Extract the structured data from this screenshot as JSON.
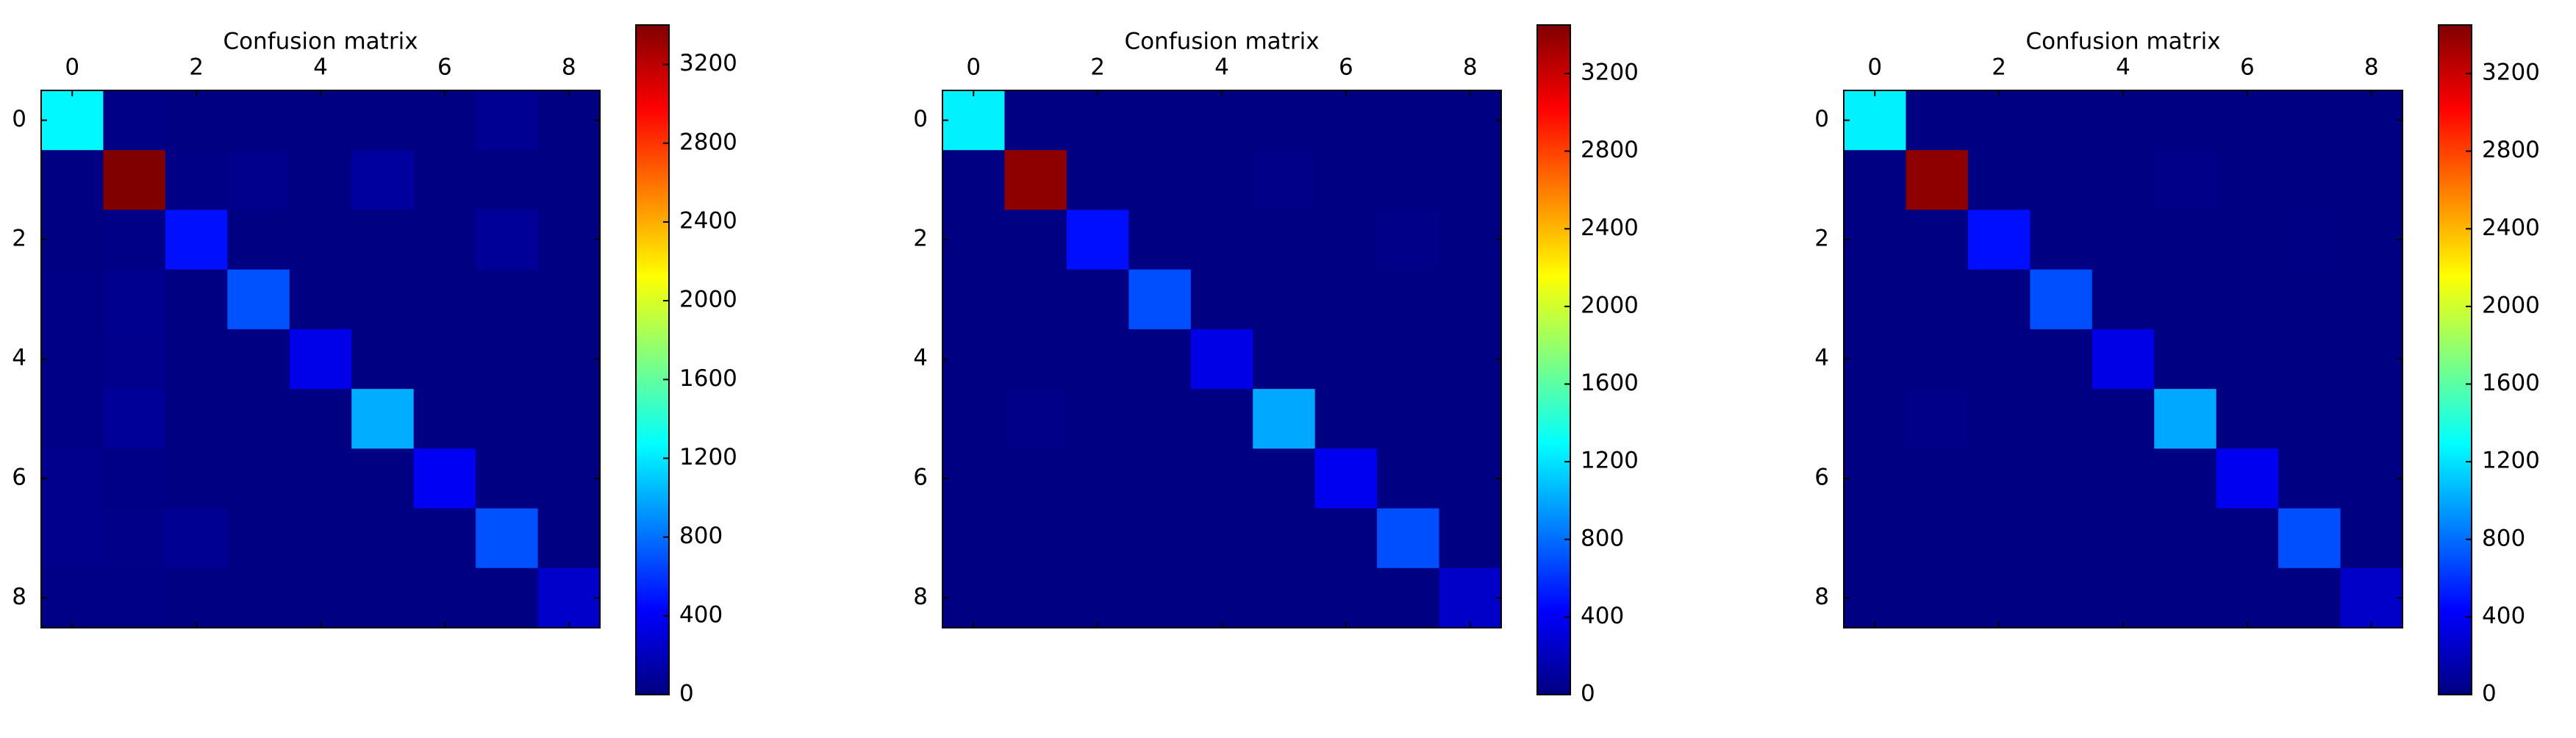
{
  "chart_data": [
    {
      "type": "heatmap",
      "title": "Confusion matrix",
      "colormap": "jet",
      "xlim": [
        -0.5,
        8.5
      ],
      "ylim": [
        -0.5,
        8.5
      ],
      "y_inverted": true,
      "xticks": [
        0,
        2,
        4,
        6,
        8
      ],
      "yticks": [
        0,
        2,
        4,
        6,
        8
      ],
      "clim": [
        0,
        3400
      ],
      "cticks": [
        0,
        400,
        800,
        1200,
        1600,
        2000,
        2400,
        2800,
        3200
      ],
      "values": [
        [
          1250,
          20,
          10,
          10,
          10,
          10,
          10,
          60,
          10
        ],
        [
          10,
          3400,
          20,
          40,
          10,
          100,
          10,
          10,
          10
        ],
        [
          10,
          20,
          480,
          10,
          10,
          10,
          10,
          80,
          10
        ],
        [
          20,
          50,
          10,
          700,
          10,
          10,
          10,
          10,
          10
        ],
        [
          20,
          40,
          10,
          10,
          350,
          10,
          10,
          10,
          10
        ],
        [
          20,
          80,
          10,
          10,
          10,
          1000,
          10,
          10,
          10
        ],
        [
          40,
          20,
          10,
          10,
          10,
          10,
          380,
          10,
          10
        ],
        [
          40,
          30,
          60,
          10,
          10,
          10,
          10,
          700,
          10
        ],
        [
          20,
          20,
          10,
          10,
          10,
          10,
          10,
          10,
          250
        ]
      ]
    },
    {
      "type": "heatmap",
      "title": "Confusion matrix",
      "colormap": "jet",
      "xlim": [
        -0.5,
        8.5
      ],
      "ylim": [
        -0.5,
        8.5
      ],
      "y_inverted": true,
      "xticks": [
        0,
        2,
        4,
        6,
        8
      ],
      "yticks": [
        0,
        2,
        4,
        6,
        8
      ],
      "clim": [
        0,
        3450
      ],
      "cticks": [
        0,
        400,
        800,
        1200,
        1600,
        2000,
        2400,
        2800,
        3200
      ],
      "values": [
        [
          1250,
          10,
          10,
          10,
          10,
          10,
          10,
          10,
          10
        ],
        [
          10,
          3400,
          10,
          10,
          10,
          30,
          10,
          10,
          10
        ],
        [
          10,
          10,
          480,
          10,
          10,
          10,
          10,
          30,
          10
        ],
        [
          10,
          10,
          10,
          700,
          10,
          10,
          10,
          10,
          10
        ],
        [
          10,
          10,
          10,
          10,
          350,
          10,
          10,
          10,
          10
        ],
        [
          10,
          30,
          10,
          10,
          10,
          1000,
          10,
          10,
          10
        ],
        [
          10,
          10,
          10,
          10,
          10,
          10,
          380,
          10,
          10
        ],
        [
          10,
          10,
          10,
          10,
          10,
          10,
          10,
          700,
          10
        ],
        [
          10,
          10,
          10,
          10,
          10,
          10,
          10,
          10,
          250
        ]
      ]
    },
    {
      "type": "heatmap",
      "title": "Confusion matrix",
      "colormap": "jet",
      "xlim": [
        -0.5,
        8.5
      ],
      "ylim": [
        -0.5,
        8.5
      ],
      "y_inverted": true,
      "xticks": [
        0,
        2,
        4,
        6,
        8
      ],
      "yticks": [
        0,
        2,
        4,
        6,
        8
      ],
      "clim": [
        0,
        3450
      ],
      "cticks": [
        0,
        400,
        800,
        1200,
        1600,
        2000,
        2400,
        2800,
        3200
      ],
      "values": [
        [
          1250,
          10,
          10,
          10,
          10,
          10,
          10,
          10,
          10
        ],
        [
          10,
          3400,
          10,
          10,
          10,
          30,
          10,
          10,
          10
        ],
        [
          10,
          10,
          480,
          10,
          10,
          10,
          10,
          20,
          10
        ],
        [
          10,
          10,
          10,
          700,
          10,
          10,
          10,
          10,
          10
        ],
        [
          10,
          10,
          10,
          10,
          350,
          10,
          10,
          10,
          10
        ],
        [
          10,
          30,
          10,
          10,
          10,
          1000,
          10,
          10,
          10
        ],
        [
          10,
          10,
          10,
          10,
          10,
          10,
          380,
          10,
          10
        ],
        [
          10,
          10,
          10,
          10,
          10,
          10,
          10,
          700,
          10
        ],
        [
          10,
          10,
          10,
          10,
          10,
          10,
          10,
          10,
          250
        ]
      ]
    }
  ]
}
